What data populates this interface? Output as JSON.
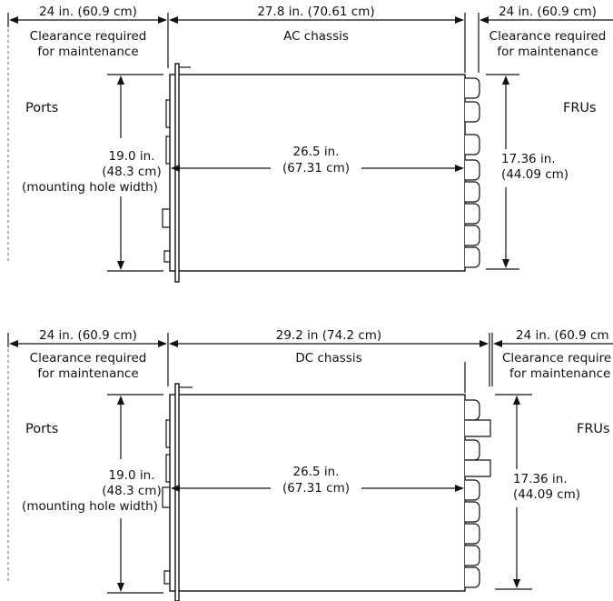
{
  "diagrams": [
    {
      "chassis_label": "AC chassis",
      "chassis_dim": "27.8 in. (70.61 cm)",
      "left_clear_dim": "24 in. (60.9 cm)",
      "left_clear_l1": "Clearance required",
      "left_clear_l2": "for maintenance",
      "right_clear_dim": "24 in. (60.9 cm)",
      "right_clear_l1": "Clearance required",
      "right_clear_l2": "for maintenance",
      "ports": "Ports",
      "frus": "FRUs",
      "height_l1": "19.0 in.",
      "height_l2": "(48.3 cm)",
      "height_l3": "(mounting hole width)",
      "depth_l1": "26.5 in.",
      "depth_l2": "(67.31 cm)",
      "fru_height_l1": "17.36 in.",
      "fru_height_l2": "(44.09 cm)"
    },
    {
      "chassis_label": "DC chassis",
      "chassis_dim": "29.2 in (74.2 cm)",
      "left_clear_dim": "24 in. (60.9 cm)",
      "left_clear_l1": "Clearance required",
      "left_clear_l2": "for maintenance",
      "right_clear_dim": "24 in. (60.9 cm",
      "right_clear_l1": "Clearance require",
      "right_clear_l2": "for maintenance",
      "ports": "Ports",
      "frus": "FRUs",
      "height_l1": "19.0 in.",
      "height_l2": "(48.3 cm)",
      "height_l3": "(mounting hole width)",
      "depth_l1": "26.5 in.",
      "depth_l2": "(67.31 cm)",
      "fru_height_l1": "17.36 in.",
      "fru_height_l2": "(44.09 cm)"
    }
  ]
}
